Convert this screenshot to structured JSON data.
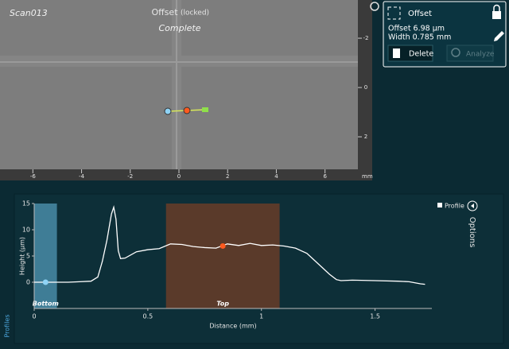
{
  "scan": {
    "title": "Scan013",
    "mode": "Offset",
    "mode_state": "(locked)",
    "status": "Complete",
    "x_ruler": {
      "xlim": [
        -7.35,
        7.35
      ],
      "xticks": [
        -6,
        -4,
        -2,
        0,
        2,
        4,
        6
      ],
      "unit": "mm"
    },
    "y_ruler": {
      "ylim": [
        -3.55,
        3.32
      ],
      "yticks": [
        -2,
        0,
        2
      ]
    }
  },
  "panel": {
    "title": "Offset",
    "offset": "Offset 6.98 µm",
    "width": "Width 0.785 mm",
    "delete": "Delete",
    "analyze": "Analyze"
  },
  "sidebar": {
    "profiles": "Profiles",
    "options": "Options"
  },
  "chart_data": {
    "type": "line",
    "xlabel": "Distance (mm)",
    "ylabel": "Height (µm)",
    "xlim": [
      0,
      1.75
    ],
    "ylim": [
      -5,
      15
    ],
    "xticks": [
      0,
      0.5,
      1,
      1.5
    ],
    "yticks": [
      0,
      5,
      10,
      15
    ],
    "x": [
      0,
      0.05,
      0.1,
      0.15,
      0.2,
      0.25,
      0.28,
      0.3,
      0.32,
      0.34,
      0.35,
      0.36,
      0.37,
      0.38,
      0.4,
      0.45,
      0.5,
      0.55,
      0.6,
      0.65,
      0.7,
      0.75,
      0.8,
      0.85,
      0.9,
      0.95,
      1.0,
      1.05,
      1.1,
      1.15,
      1.2,
      1.25,
      1.3,
      1.33,
      1.35,
      1.4,
      1.5,
      1.6,
      1.65,
      1.7,
      1.72
    ],
    "series": [
      {
        "name": "Profile",
        "color": "#ffffff",
        "values": [
          0,
          0,
          0,
          0,
          0.1,
          0.2,
          1,
          4,
          8,
          13,
          14.3,
          12,
          6,
          4.5,
          4.6,
          5.8,
          6.2,
          6.4,
          7.3,
          7.2,
          6.8,
          6.6,
          6.5,
          7.3,
          7.0,
          7.4,
          7.0,
          7.1,
          6.9,
          6.5,
          5.5,
          3.5,
          1.5,
          0.5,
          0.3,
          0.4,
          0.3,
          0.2,
          0.1,
          -0.3,
          -0.4
        ]
      }
    ],
    "regions": [
      {
        "name": "Bottom",
        "xlim": [
          0,
          0.1
        ],
        "color": "#3f7d96"
      },
      {
        "name": "Top",
        "xlim": [
          0.58,
          1.08
        ],
        "color": "#5a3a2a"
      }
    ],
    "markers": [
      {
        "x": 0.05,
        "y": 0,
        "color": "#8fd3f5"
      },
      {
        "x": 0.83,
        "y": 6.9,
        "color": "#ff5a1f"
      }
    ]
  }
}
